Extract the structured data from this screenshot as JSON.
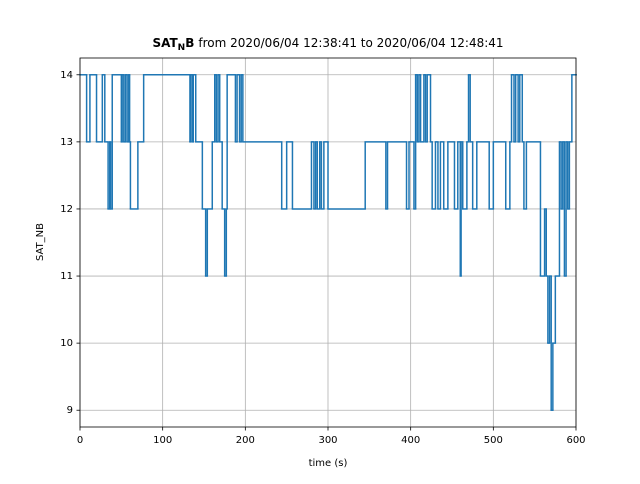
{
  "chart_data": {
    "type": "step",
    "title_parts": [
      "SAT",
      "N",
      "B",
      "from 2020/06/04 12:38:41 to 2020/06/04 12:48:41"
    ],
    "xlabel": "time (s)",
    "ylabel": "SAT_NB",
    "xlim": [
      0,
      600
    ],
    "ylim": [
      8.75,
      14.25
    ],
    "xticks": [
      0,
      100,
      200,
      300,
      400,
      500,
      600
    ],
    "yticks": [
      9,
      10,
      11,
      12,
      13,
      14
    ],
    "grid": true,
    "series": [
      {
        "color": "#1f77b4",
        "x": [
          0,
          8,
          12,
          20,
          27,
          30,
          34,
          36,
          37,
          39,
          50,
          51,
          53,
          55,
          57,
          59,
          60,
          61,
          70,
          77,
          133,
          134,
          136,
          137,
          140,
          148,
          152,
          154,
          160,
          163,
          165,
          167,
          169,
          172,
          175,
          177,
          178,
          188,
          190,
          193,
          195,
          197,
          244,
          250,
          257,
          280,
          283,
          285,
          287,
          290,
          292,
          295,
          300,
          345,
          370,
          372,
          395,
          398,
          404,
          406,
          408,
          410,
          412,
          416,
          418,
          420,
          424,
          426,
          430,
          433,
          436,
          440,
          445,
          453,
          457,
          460,
          461,
          463,
          468,
          470,
          472,
          475,
          480,
          495,
          500,
          515,
          520,
          522,
          525,
          527,
          530,
          532,
          535,
          537,
          540,
          557,
          562,
          564,
          566,
          568,
          570,
          572,
          575,
          580,
          582,
          584,
          586,
          588,
          590,
          592,
          595,
          600
        ],
        "values": [
          14,
          13,
          14,
          13,
          14,
          13,
          12,
          13,
          12,
          14,
          13,
          14,
          13,
          14,
          13,
          14,
          13,
          12,
          13,
          14,
          13,
          14,
          13,
          14,
          13,
          12,
          11,
          12,
          13,
          14,
          13,
          14,
          13,
          12,
          11,
          12,
          14,
          13,
          14,
          13,
          14,
          13,
          12,
          13,
          12,
          13,
          12,
          13,
          12,
          13,
          12,
          13,
          12,
          13,
          12,
          13,
          12,
          13,
          12,
          14,
          13,
          14,
          13,
          14,
          13,
          14,
          13,
          12,
          13,
          12,
          13,
          12,
          13,
          12,
          13,
          11,
          13,
          12,
          13,
          14,
          13,
          12,
          13,
          12,
          13,
          12,
          13,
          14,
          13,
          14,
          13,
          14,
          13,
          12,
          13,
          11,
          12,
          11,
          10,
          11,
          9,
          10,
          11,
          13,
          12,
          13,
          11,
          13,
          12,
          13,
          14,
          14
        ]
      }
    ]
  }
}
